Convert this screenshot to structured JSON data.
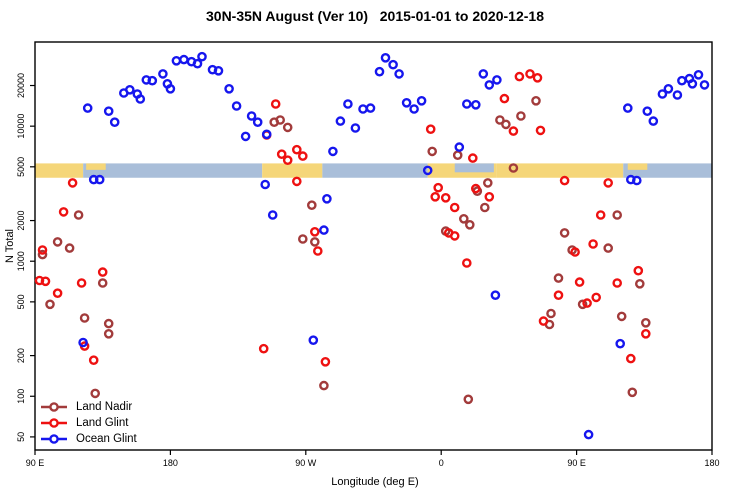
{
  "chart_data": {
    "type": "scatter",
    "title": "30N-35N August (Ver 10)   2015-01-01 to 2020-12-18",
    "xlabel": "Longitude (deg E)",
    "ylabel": "N Total",
    "x_axis": {
      "note": "longitude increases eastward from 90E and wraps past the dateline",
      "range_deg": [
        90,
        540
      ],
      "ticks_deg": [
        90,
        180,
        270,
        360,
        450,
        540
      ],
      "tick_labels": [
        "90 E",
        "180",
        "90 W",
        "0",
        "90 E",
        "180"
      ]
    },
    "y_axis": {
      "scale": "log",
      "range": [
        40,
        42000
      ],
      "ticks": [
        50,
        100,
        200,
        500,
        1000,
        2000,
        5000,
        10000,
        20000
      ],
      "grid": false
    },
    "legend": [
      {
        "name": "Land Nadir",
        "color": "#A23B3B"
      },
      {
        "name": "Land Glint",
        "color": "#EE1111"
      },
      {
        "name": "Ocean Glint",
        "color": "#1616EE"
      }
    ],
    "marker": {
      "shape": "open-circle",
      "radius": 3.6,
      "stroke_width": 2.4
    },
    "map_strip": {
      "comment": "land/ocean band of 30N-35N latitudes drawn across the plot",
      "N_top": 5300,
      "N_bottom": 4150,
      "land_color": "#F5D679",
      "ocean_color": "#A9BED9",
      "segments": [
        {
          "from": 90,
          "to": 122,
          "type": "land"
        },
        {
          "from": 122,
          "to": 241,
          "type": "ocean"
        },
        {
          "from": 241,
          "to": 281,
          "type": "land"
        },
        {
          "from": 281,
          "to": 351,
          "type": "ocean"
        },
        {
          "from": 351,
          "to": 397,
          "type": "land"
        },
        {
          "from": 397,
          "to": 481,
          "type": "land"
        },
        {
          "from": 481,
          "to": 540,
          "type": "ocean"
        }
      ],
      "patches": [
        {
          "from": 124,
          "to": 137,
          "type": "land",
          "top": 0.0,
          "h": 0.45
        },
        {
          "from": 484,
          "to": 497,
          "type": "land",
          "top": 0.0,
          "h": 0.45
        },
        {
          "from": 369,
          "to": 395,
          "type": "ocean",
          "top": 0.0,
          "h": 0.62
        }
      ]
    },
    "series": [
      {
        "name": "Land Nadir",
        "color": "#A23B3B",
        "points": [
          [
            119,
            2200
          ],
          [
            105,
            1390
          ],
          [
            113,
            1250
          ],
          [
            95,
            1120
          ],
          [
            100,
            480
          ],
          [
            135,
            690
          ],
          [
            123,
            380
          ],
          [
            139,
            345
          ],
          [
            139,
            290
          ],
          [
            130,
            105
          ],
          [
            249,
            10700
          ],
          [
            253,
            11100
          ],
          [
            258,
            9800
          ],
          [
            274,
            2600
          ],
          [
            268,
            1460
          ],
          [
            276,
            1390
          ],
          [
            282,
            120
          ],
          [
            354,
            6500
          ],
          [
            371,
            6100
          ],
          [
            408,
            4900
          ],
          [
            384,
            3300
          ],
          [
            391,
            3800
          ],
          [
            389,
            2500
          ],
          [
            375,
            2060
          ],
          [
            379,
            1860
          ],
          [
            363,
            1670
          ],
          [
            399,
            11100
          ],
          [
            403,
            10300
          ],
          [
            413,
            11900
          ],
          [
            423,
            15400
          ],
          [
            378,
            95
          ],
          [
            477,
            2200
          ],
          [
            442,
            1620
          ],
          [
            447,
            1210
          ],
          [
            471,
            1250
          ],
          [
            438,
            750
          ],
          [
            433,
            410
          ],
          [
            432,
            340
          ],
          [
            454,
            480
          ],
          [
            480,
            390
          ],
          [
            496,
            350
          ],
          [
            492,
            680
          ],
          [
            487,
            107
          ]
        ]
      },
      {
        "name": "Land Glint",
        "color": "#EE1111",
        "points": [
          [
            115,
            3800
          ],
          [
            109,
            2320
          ],
          [
            95,
            1210
          ],
          [
            93,
            720
          ],
          [
            97,
            710
          ],
          [
            105,
            580
          ],
          [
            121,
            690
          ],
          [
            135,
            830
          ],
          [
            129,
            185
          ],
          [
            123,
            235
          ],
          [
            250,
            14600
          ],
          [
            244,
            8600
          ],
          [
            254,
            6200
          ],
          [
            258,
            5600
          ],
          [
            264,
            6700
          ],
          [
            268,
            6000
          ],
          [
            264,
            3900
          ],
          [
            276,
            1650
          ],
          [
            278,
            1190
          ],
          [
            242,
            225
          ],
          [
            283,
            180
          ],
          [
            353,
            9500
          ],
          [
            377,
            970
          ],
          [
            381,
            5800
          ],
          [
            402,
            16000
          ],
          [
            408,
            9200
          ],
          [
            412,
            23300
          ],
          [
            419,
            24400
          ],
          [
            424,
            22800
          ],
          [
            426,
            9300
          ],
          [
            358,
            3500
          ],
          [
            356,
            3000
          ],
          [
            363,
            2950
          ],
          [
            392,
            3000
          ],
          [
            383,
            3450
          ],
          [
            369,
            2500
          ],
          [
            365,
            1620
          ],
          [
            369,
            1540
          ],
          [
            442,
            3950
          ],
          [
            471,
            3800
          ],
          [
            466,
            2200
          ],
          [
            452,
            700
          ],
          [
            438,
            560
          ],
          [
            457,
            490
          ],
          [
            463,
            540
          ],
          [
            477,
            690
          ],
          [
            491,
            850
          ],
          [
            496,
            290
          ],
          [
            486,
            190
          ],
          [
            449,
            1170
          ],
          [
            461,
            1340
          ],
          [
            428,
            360
          ]
        ]
      },
      {
        "name": "Ocean Glint",
        "color": "#1616EE",
        "points": [
          [
            125,
            13600
          ],
          [
            139,
            12900
          ],
          [
            143,
            10700
          ],
          [
            149,
            17600
          ],
          [
            153,
            18600
          ],
          [
            158,
            17300
          ],
          [
            160,
            15900
          ],
          [
            164,
            22000
          ],
          [
            168,
            21700
          ],
          [
            175,
            24400
          ],
          [
            178,
            20600
          ],
          [
            180,
            18900
          ],
          [
            184,
            30500
          ],
          [
            189,
            31100
          ],
          [
            194,
            30000
          ],
          [
            198,
            29000
          ],
          [
            201,
            32700
          ],
          [
            208,
            26200
          ],
          [
            212,
            25700
          ],
          [
            219,
            18900
          ],
          [
            224,
            14100
          ],
          [
            230,
            8400
          ],
          [
            234,
            11900
          ],
          [
            238,
            10700
          ],
          [
            244,
            8700
          ],
          [
            129,
            4020
          ],
          [
            133,
            4020
          ],
          [
            243,
            3700
          ],
          [
            248,
            2200
          ],
          [
            275,
            260
          ],
          [
            282,
            1700
          ],
          [
            284,
            2900
          ],
          [
            288,
            6500
          ],
          [
            293,
            10900
          ],
          [
            298,
            14600
          ],
          [
            303,
            9700
          ],
          [
            308,
            13400
          ],
          [
            313,
            13600
          ],
          [
            319,
            25300
          ],
          [
            323,
            32100
          ],
          [
            328,
            28500
          ],
          [
            332,
            24400
          ],
          [
            337,
            14900
          ],
          [
            342,
            13400
          ],
          [
            347,
            15400
          ],
          [
            351,
            4700
          ],
          [
            372,
            7000
          ],
          [
            377,
            14600
          ],
          [
            383,
            14400
          ],
          [
            388,
            24400
          ],
          [
            392,
            20200
          ],
          [
            397,
            22000
          ],
          [
            396,
            560
          ],
          [
            122,
            250
          ],
          [
            458,
            52
          ],
          [
            479,
            245
          ],
          [
            484,
            13600
          ],
          [
            486,
            4020
          ],
          [
            490,
            3960
          ],
          [
            497,
            12900
          ],
          [
            501,
            10900
          ],
          [
            507,
            17300
          ],
          [
            511,
            18900
          ],
          [
            517,
            17000
          ],
          [
            520,
            21700
          ],
          [
            525,
            22500
          ],
          [
            527,
            20600
          ],
          [
            531,
            24000
          ],
          [
            535,
            20200
          ]
        ]
      }
    ],
    "plot_box_color": "#000000",
    "background": "#FFFFFF"
  }
}
